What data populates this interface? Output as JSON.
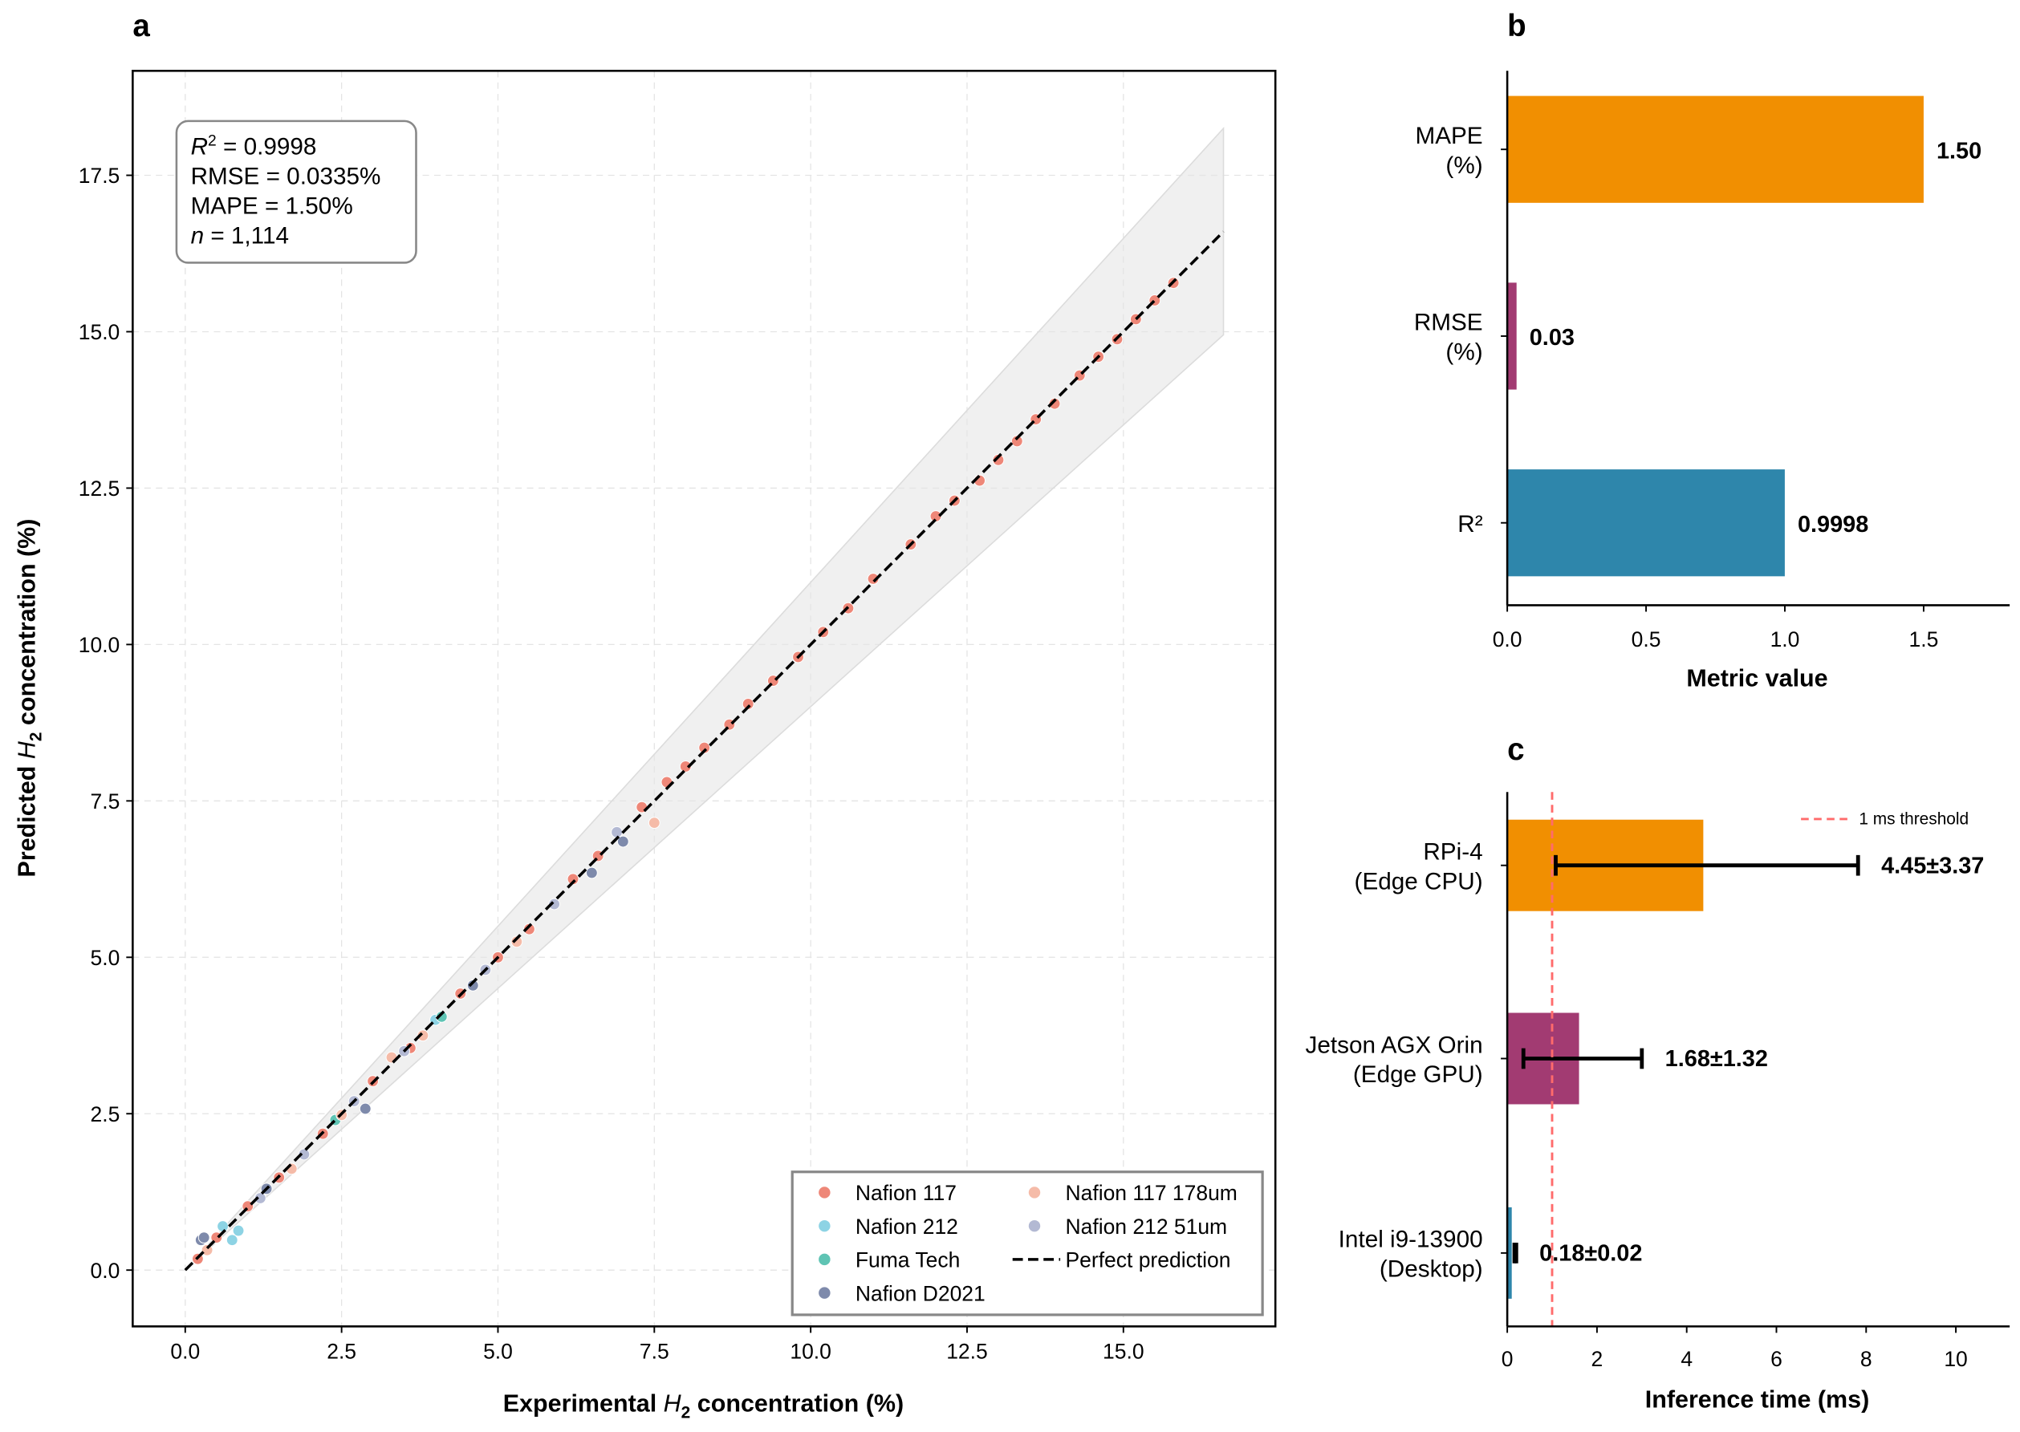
{
  "chart_data": [
    {
      "panel_label": "a",
      "type": "scatter",
      "xlabel_prefix": "Experimental ",
      "xlabel_var": "H",
      "xlabel_sub": "2",
      "xlabel_suffix": " concentration (%)",
      "ylabel_prefix": "Predicted ",
      "ylabel_var": "H",
      "ylabel_sub": "2",
      "ylabel_suffix": " concentration (%)",
      "xlim": [
        -0.84,
        17.43
      ],
      "ylim": [
        -0.9,
        19.17
      ],
      "xticks": [
        "0.0",
        "2.5",
        "5.0",
        "7.5",
        "10.0",
        "12.5",
        "15.0"
      ],
      "xtick_values": [
        0,
        2.5,
        5,
        7.5,
        10,
        12.5,
        15
      ],
      "yticks": [
        "0.0",
        "2.5",
        "5.0",
        "7.5",
        "10.0",
        "12.5",
        "15.0",
        "17.5"
      ],
      "ytick_values": [
        0,
        2.5,
        5,
        7.5,
        10,
        12.5,
        15,
        17.5
      ],
      "grid": true,
      "stats": {
        "r2_label": "R",
        "r2_sup": "2",
        "r2_value": " = 0.9998",
        "rmse": "RMSE = 0.0335%",
        "mape": "MAPE = 1.50%",
        "n_label": "n",
        "n_value": " = 1,114"
      },
      "band": {
        "x_end": 16.6,
        "upper_end": 18.25,
        "lower_end": 14.95,
        "color": "#e6e6e6"
      },
      "perfect_line": {
        "x": [
          0,
          16.6
        ],
        "y": [
          0,
          16.6
        ]
      },
      "legend_position": "lower-right",
      "series": [
        {
          "name": "Nafion 117",
          "color": "#ee8778",
          "points": [
            [
              0.2,
              0.18
            ],
            [
              0.5,
              0.52
            ],
            [
              1.0,
              1.02
            ],
            [
              1.5,
              1.48
            ],
            [
              2.2,
              2.18
            ],
            [
              3.0,
              3.02
            ],
            [
              3.6,
              3.55
            ],
            [
              4.4,
              4.42
            ],
            [
              5.0,
              5.0
            ],
            [
              5.5,
              5.45
            ],
            [
              6.2,
              6.25
            ],
            [
              6.6,
              6.62
            ],
            [
              7.3,
              7.4
            ],
            [
              7.7,
              7.8
            ],
            [
              8.0,
              8.05
            ],
            [
              8.3,
              8.35
            ],
            [
              8.7,
              8.72
            ],
            [
              9.0,
              9.05
            ],
            [
              9.4,
              9.42
            ],
            [
              9.8,
              9.8
            ],
            [
              10.2,
              10.2
            ],
            [
              10.6,
              10.58
            ],
            [
              11.0,
              11.05
            ],
            [
              11.6,
              11.6
            ],
            [
              12.0,
              12.05
            ],
            [
              12.3,
              12.3
            ],
            [
              12.7,
              12.62
            ],
            [
              13.0,
              12.95
            ],
            [
              13.3,
              13.25
            ],
            [
              13.6,
              13.6
            ],
            [
              13.9,
              13.85
            ],
            [
              14.3,
              14.3
            ],
            [
              14.6,
              14.6
            ],
            [
              14.9,
              14.88
            ],
            [
              15.2,
              15.2
            ],
            [
              15.5,
              15.5
            ],
            [
              15.8,
              15.78
            ]
          ]
        },
        {
          "name": "Nafion 212",
          "color": "#8dd3e4",
          "points": [
            [
              0.6,
              0.7
            ],
            [
              0.75,
              0.48
            ],
            [
              0.85,
              0.63
            ],
            [
              4.0,
              4.0
            ]
          ]
        },
        {
          "name": "Fuma Tech",
          "color": "#5fc4b4",
          "points": [
            [
              4.1,
              4.05
            ],
            [
              2.4,
              2.4
            ]
          ]
        },
        {
          "name": "Nafion D2021",
          "color": "#7e8aab",
          "points": [
            [
              0.25,
              0.48
            ],
            [
              0.3,
              0.52
            ],
            [
              1.3,
              1.3
            ],
            [
              2.88,
              2.58
            ],
            [
              4.6,
              4.55
            ],
            [
              6.5,
              6.35
            ],
            [
              7.0,
              6.85
            ]
          ]
        },
        {
          "name": "Nafion 117 178um",
          "color": "#f5bba8",
          "points": [
            [
              0.35,
              0.32
            ],
            [
              1.7,
              1.62
            ],
            [
              2.5,
              2.48
            ],
            [
              3.3,
              3.4
            ],
            [
              3.8,
              3.75
            ],
            [
              5.3,
              5.25
            ],
            [
              7.5,
              7.15
            ]
          ]
        },
        {
          "name": "Nafion 212 51um",
          "color": "#b3b9d3",
          "points": [
            [
              1.2,
              1.15
            ],
            [
              1.9,
              1.85
            ],
            [
              2.7,
              2.7
            ],
            [
              3.5,
              3.5
            ],
            [
              4.8,
              4.8
            ],
            [
              5.9,
              5.85
            ],
            [
              6.9,
              7.0
            ]
          ]
        }
      ],
      "perfect_label": "Perfect prediction"
    },
    {
      "panel_label": "b",
      "type": "bar",
      "orientation": "horizontal",
      "categories": [
        "MAPE\n(%)",
        "RMSE\n(%)",
        "R²"
      ],
      "category_lines": [
        [
          "MAPE",
          "(%)"
        ],
        [
          "RMSE",
          "(%)"
        ],
        [
          "R²"
        ]
      ],
      "values": [
        1.5,
        0.0335,
        0.9998
      ],
      "value_labels": [
        "1.50",
        "0.03",
        "0.9998"
      ],
      "colors": [
        "#f18f01",
        "#a23b72",
        "#2e86ab"
      ],
      "xlabel": "Metric value",
      "xlim": [
        0,
        1.81
      ],
      "xticks": [
        "0.0",
        "0.5",
        "1.0",
        "1.5"
      ],
      "xtick_values": [
        0,
        0.5,
        1,
        1.5
      ]
    },
    {
      "panel_label": "c",
      "type": "bar",
      "orientation": "horizontal",
      "category_lines": [
        [
          "RPi-4",
          "(Edge CPU)"
        ],
        [
          "Jetson AGX Orin",
          "(Edge GPU)"
        ],
        [
          "Intel i9-13900",
          "(Desktop)"
        ]
      ],
      "means": [
        4.45,
        1.68,
        0.18
      ],
      "errors": [
        3.37,
        1.32,
        0.02
      ],
      "bar_values": [
        4.37,
        1.6,
        0.1
      ],
      "value_labels": [
        "4.45±3.37",
        "1.68±1.32",
        "0.18±0.02"
      ],
      "colors": [
        "#f18f01",
        "#a23b72",
        "#2e86ab"
      ],
      "threshold": {
        "value": 1,
        "label": "1 ms threshold",
        "color": "#ff6b6b"
      },
      "xlabel": "Inference time (ms)",
      "xlim": [
        0,
        11.2
      ],
      "xticks": [
        "0",
        "2",
        "4",
        "6",
        "8",
        "10"
      ],
      "xtick_values": [
        0,
        2,
        4,
        6,
        8,
        10
      ],
      "legend_position": "top-right"
    }
  ]
}
